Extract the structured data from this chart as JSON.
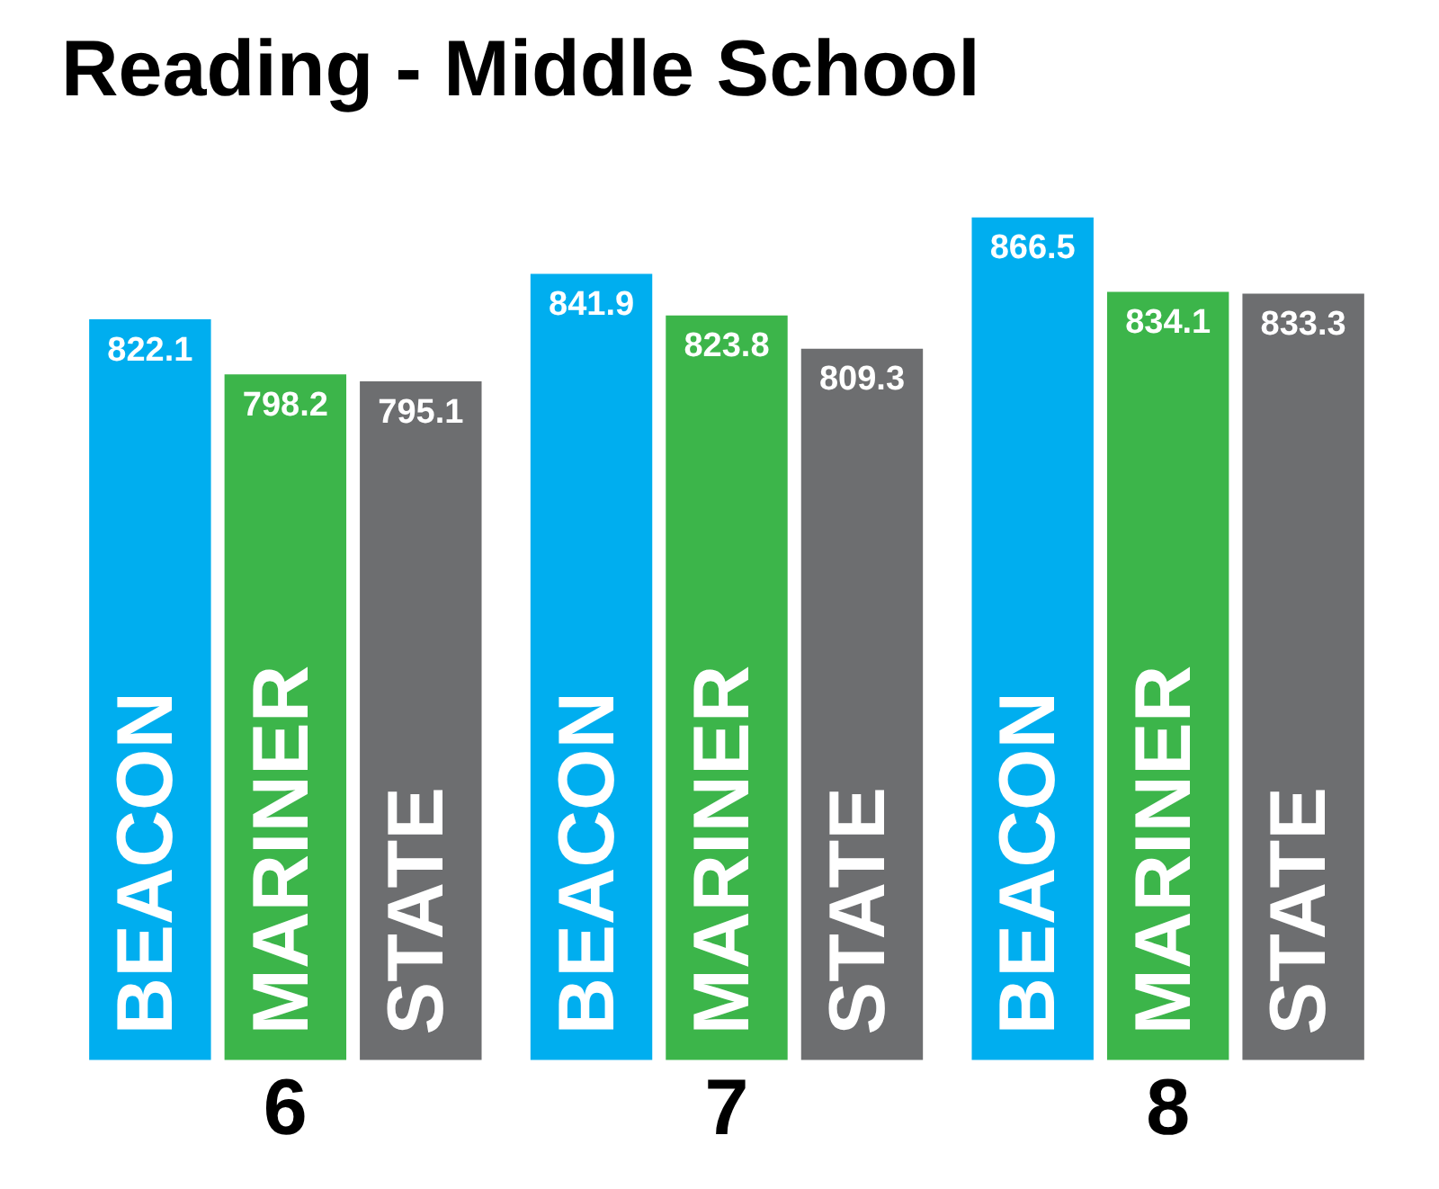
{
  "chart_data": {
    "type": "bar",
    "title": "Reading - Middle School",
    "categories": [
      "6",
      "7",
      "8"
    ],
    "series": [
      {
        "name": "BEACON",
        "color": "#00aeef",
        "values": [
          822.1,
          841.9,
          866.5
        ]
      },
      {
        "name": "MARINER",
        "color": "#3cb54a",
        "values": [
          798.2,
          823.8,
          834.1
        ]
      },
      {
        "name": "STATE",
        "color": "#6d6e70",
        "values": [
          795.1,
          809.3,
          833.3
        ]
      }
    ],
    "tick_labels": "x",
    "data_labels": true,
    "legend": false,
    "grid": false
  }
}
